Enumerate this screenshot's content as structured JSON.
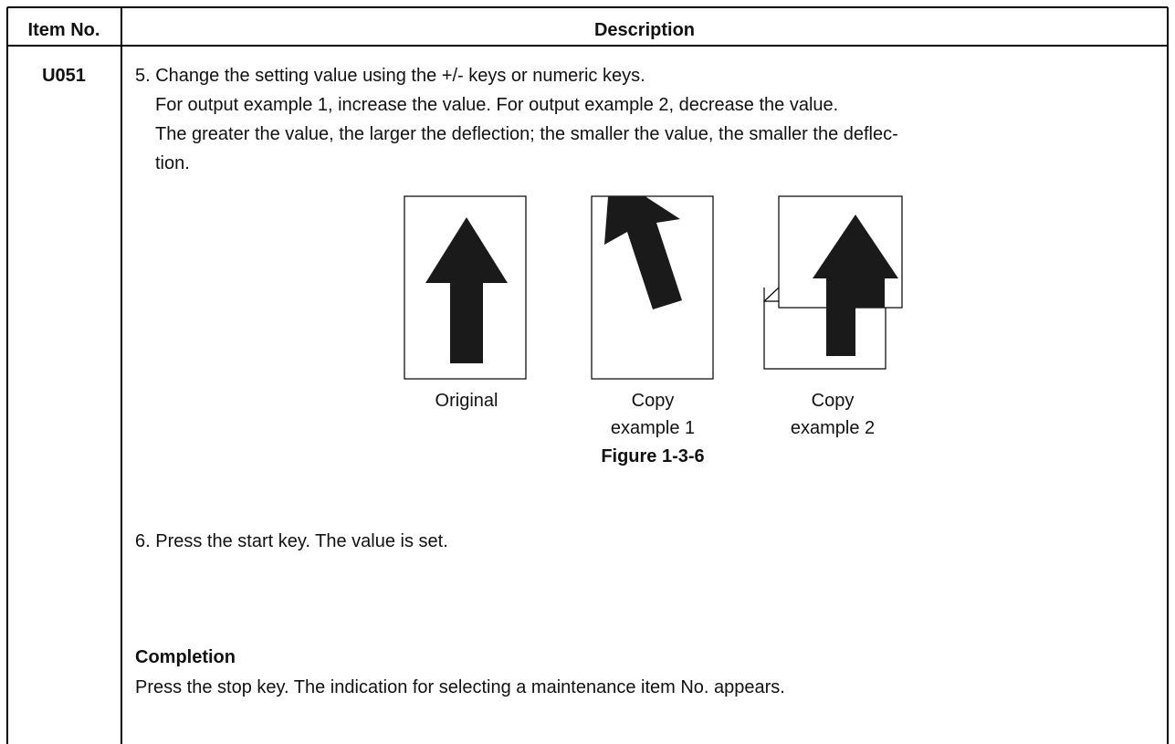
{
  "header": {
    "item_no": "Item No.",
    "description": "Description"
  },
  "row": {
    "item": "U051",
    "step5": [
      "5. Change the setting value using the +/- keys or numeric keys.",
      "For output example 1, increase the value. For output example 2, decrease the value.",
      "The greater the value, the larger the deflection; the smaller the value, the smaller the deflec-",
      "tion."
    ],
    "figure": {
      "panels": [
        [
          "Original"
        ],
        [
          "Copy",
          "example 1"
        ],
        [
          "Copy",
          "example 2"
        ]
      ],
      "caption": "Figure 1-3-6"
    },
    "step6": "6. Press the start key. The value is set.",
    "completion": {
      "heading": "Completion",
      "text": "Press the stop key. The indication for selecting a maintenance item No. appears."
    }
  }
}
